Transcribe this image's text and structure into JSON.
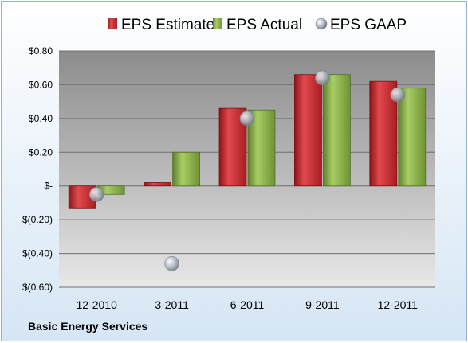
{
  "company": "Basic Energy Services",
  "chart_data": {
    "type": "bar",
    "title": "",
    "xlabel": "",
    "ylabel": "",
    "categories": [
      "12-2010",
      "3-2011",
      "6-2011",
      "9-2011",
      "12-2011"
    ],
    "series": [
      {
        "name": "EPS Estimate",
        "type": "bar",
        "color": "#c0292e",
        "values": [
          -0.13,
          0.02,
          0.46,
          0.66,
          0.62
        ]
      },
      {
        "name": "EPS Actual",
        "type": "bar",
        "color": "#8db14a",
        "values": [
          -0.05,
          0.2,
          0.45,
          0.66,
          0.58
        ]
      },
      {
        "name": "EPS GAAP",
        "type": "marker",
        "color": "#b0b8c4",
        "values": [
          -0.05,
          -0.46,
          0.4,
          0.64,
          0.54
        ]
      }
    ],
    "ylim": [
      -0.6,
      0.8
    ],
    "yticks": [
      0.8,
      0.6,
      0.4,
      0.2,
      0,
      -0.2,
      -0.4,
      -0.6
    ],
    "ytick_labels": [
      "$0.80",
      "$0.60",
      "$0.40",
      "$0.20",
      "$-",
      "$(0.20)",
      "$(0.40)",
      "$(0.60)"
    ],
    "grid": true,
    "legend_position": "top"
  }
}
